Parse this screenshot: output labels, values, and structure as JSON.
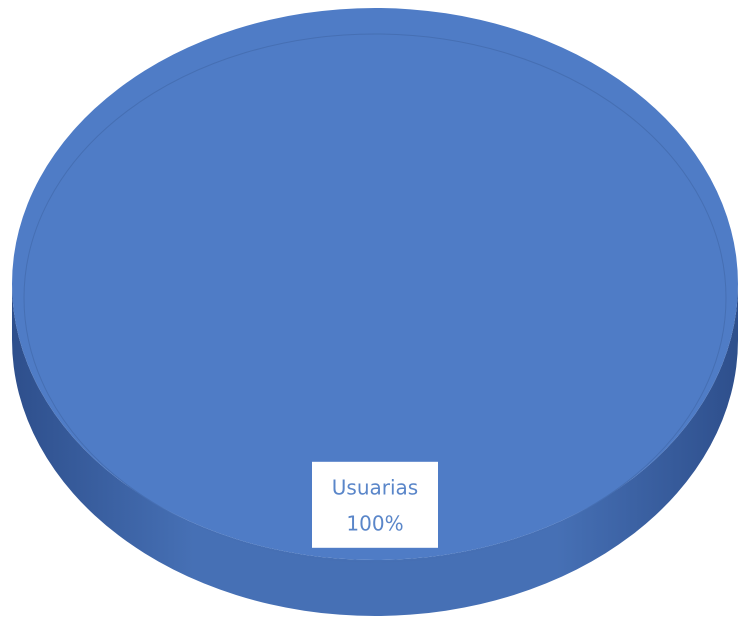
{
  "chart_data": {
    "type": "pie",
    "categories": [
      "Usuarias"
    ],
    "values": [
      100
    ],
    "value_labels": [
      "100%"
    ],
    "colors": [
      "#4f7cc6"
    ]
  }
}
